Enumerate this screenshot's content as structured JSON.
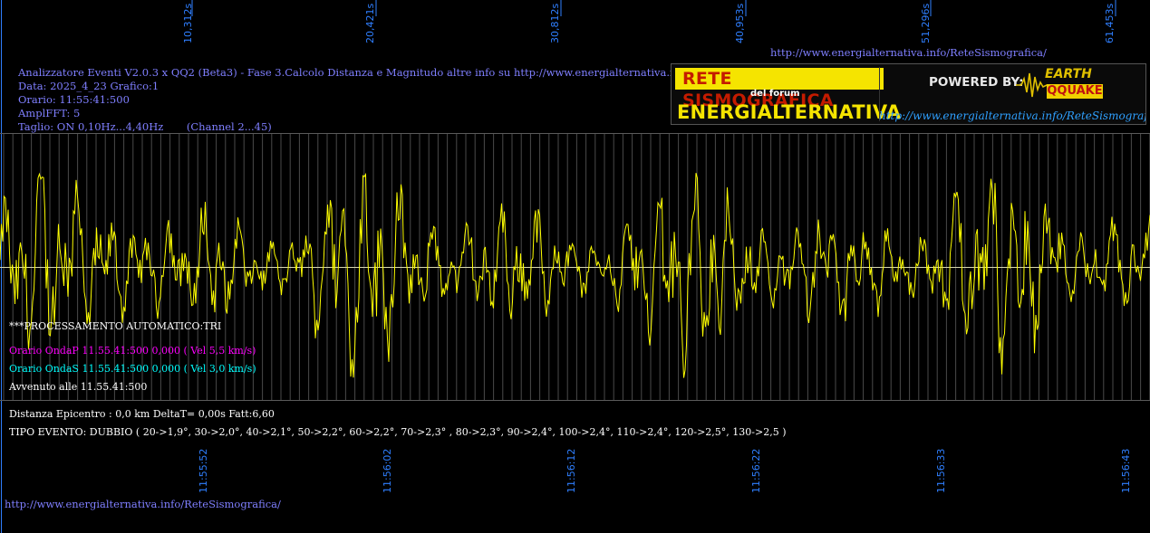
{
  "colors": {
    "background": "#000000",
    "info_text": "#7f7fff",
    "waveform": "#ffff00",
    "baseline": "#d8d8b0",
    "gridline": "#6a6a6a",
    "time_label": "#2f7fff",
    "onda_p": "#ff00ff",
    "onda_s": "#00ffff",
    "white_text": "#ffffff",
    "url": "#7f7fff"
  },
  "header": {
    "top_ticks": [
      "10,312s",
      "20,421s",
      "30,812s",
      "40,953s",
      "51,296s",
      "61,453s"
    ],
    "top_url": "http://www.energialternativa.info/ReteSismografica/"
  },
  "info": {
    "line1": "Analizzatore Eventi V2.0.3 x QQ2 (Beta3) - Fase 3.Calcolo Distanza e Magnitudo altre info su http://www.energialternativa.info/ReteSism",
    "line2": "Data: 2025_4_23 Grafico:1",
    "line3": "Orario: 11:55:41:500",
    "line4": "AmplFFT: 5",
    "line5": "Taglio: ON 0,10Hz...4,40Hz       (Channel 2...45)"
  },
  "logo": {
    "title": "RETE SISMOGRAFICA",
    "subtitle": "del forum",
    "brand": "ENERGIALTERNATIVA",
    "powered_by": "POWERED BY:",
    "earth": "EARTH",
    "qquake": "QQUAKE",
    "url": "http://www.energialternativa.info/ReteSismografica"
  },
  "processing": {
    "auto": "***PROCESSAMENTO AUTOMATICO:TRI",
    "onda_p": "Orario OndaP 11.55.41:500  0,000 ( Vel 5,5 km/s)",
    "onda_s": "Orario OndaS 11.55.41:500  0,000 ( Vel 3,0 km/s)",
    "avvenuto": "Avvenuto alle 11.55.41:500"
  },
  "results": {
    "distanza": "Distanza Epicentro : 0,0 km DeltaT= 0,00s  Fatt:6,60",
    "tipo_evento": "TIPO EVENTO: DUBBIO ( 20->1,9°, 30->2,0°, 40->2,1°, 50->2,2°, 60->2,2°, 70->2,3° , 80->2,3°, 90->2,4°, 100->2,4°, 110->2,4°, 120->2,5°, 130->2,5 )"
  },
  "bottom_ticks": [
    "11:55:52",
    "11:56:02",
    "11:56:12",
    "11:56:22",
    "11:56:33",
    "11:56:43"
  ],
  "footer_url": "http://www.energialternativa.info/ReteSismografica/"
}
